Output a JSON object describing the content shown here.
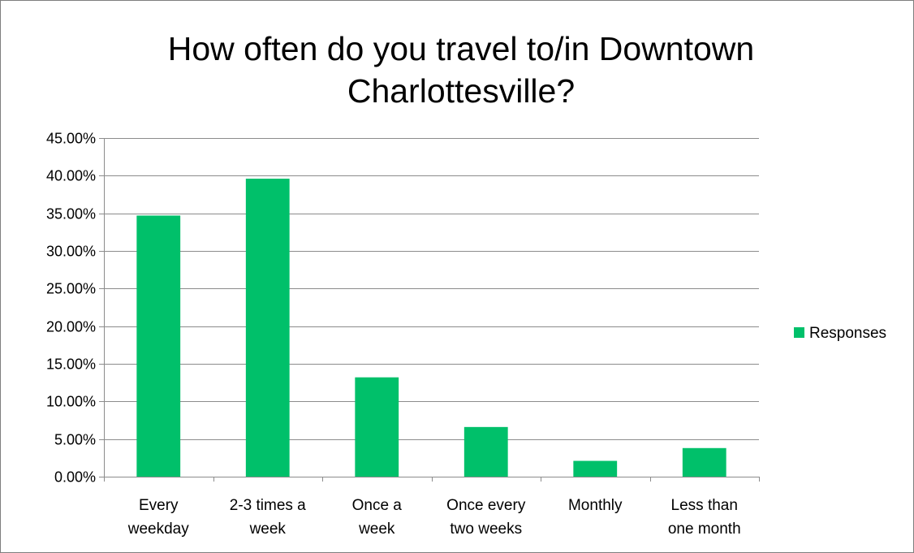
{
  "chart_data": {
    "type": "bar",
    "title_lines": [
      "How often do you travel to/in Downtown",
      "Charlottesville?"
    ],
    "categories": [
      [
        "Every",
        "weekday"
      ],
      [
        "2-3 times a",
        "week"
      ],
      [
        "Once a",
        "week"
      ],
      [
        "Once every",
        "two weeks"
      ],
      [
        "Monthly"
      ],
      [
        "Less than",
        "one month"
      ]
    ],
    "series": [
      {
        "name": "Responses",
        "values": [
          0.347,
          0.396,
          0.132,
          0.066,
          0.021,
          0.038
        ],
        "color": "#00c06a"
      }
    ],
    "y_ticks": [
      "0.00%",
      "5.00%",
      "10.00%",
      "15.00%",
      "20.00%",
      "25.00%",
      "30.00%",
      "35.00%",
      "40.00%",
      "45.00%"
    ],
    "ylim": [
      0,
      0.45
    ],
    "grid": true,
    "legend_position": "right"
  }
}
